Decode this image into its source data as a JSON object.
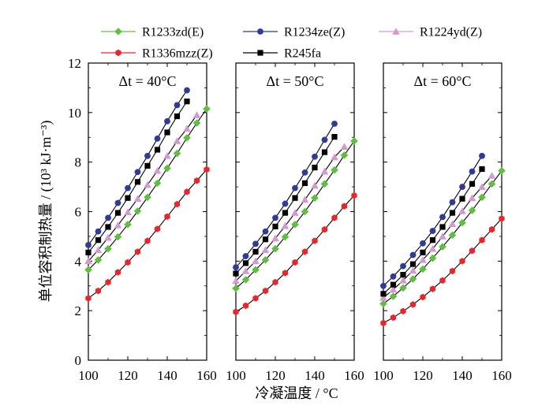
{
  "chart_data": {
    "type": "line",
    "xlabel": "冷凝温度 / °C",
    "ylabel": "单位容积制热量 / (10³ kJ·m⁻³)",
    "ylim": [
      0,
      12
    ],
    "xlim": [
      100,
      160
    ],
    "x_ticks": [
      "100",
      "120",
      "140",
      "160"
    ],
    "y_ticks": [
      "0",
      "2",
      "4",
      "6",
      "8",
      "10",
      "12"
    ],
    "x": [
      100,
      105,
      110,
      115,
      120,
      125,
      130,
      135,
      140,
      145,
      150,
      155,
      160
    ],
    "series_styles": [
      {
        "name": "R1233zd(E)",
        "color": "#5fbf3f",
        "marker": "diamond"
      },
      {
        "name": "R1234ze(Z)",
        "color": "#2e3b9a",
        "marker": "circle"
      },
      {
        "name": "R1224yd(Z)",
        "color": "#d49ad0",
        "marker": "triangle"
      },
      {
        "name": "R1336mzz(Z)",
        "color": "#e8262b",
        "marker": "hexagon"
      },
      {
        "name": "R245fa",
        "color": "#000000",
        "marker": "square"
      }
    ],
    "legend": {
      "position": "top",
      "rows": [
        [
          "R1233zd(E)",
          "R1234ze(Z)",
          "R1224yd(Z)"
        ],
        [
          "R1336mzz(Z)",
          "R245fa"
        ]
      ]
    },
    "panels": [
      {
        "label": "Δt = 40°C",
        "series": [
          {
            "name": "R1233zd(E)",
            "values": [
              3.65,
              4.05,
              4.5,
              4.98,
              5.48,
              6.02,
              6.58,
              7.15,
              7.75,
              8.35,
              8.98,
              9.58,
              10.15
            ]
          },
          {
            "name": "R1234ze(Z)",
            "values": [
              4.65,
              5.2,
              5.75,
              6.35,
              6.95,
              7.6,
              8.25,
              8.95,
              9.65,
              10.3,
              10.9
            ]
          },
          {
            "name": "R1224yd(Z)",
            "values": [
              4.0,
              4.45,
              4.95,
              5.45,
              5.98,
              6.52,
              7.08,
              7.65,
              8.25,
              8.85,
              9.35,
              9.9
            ]
          },
          {
            "name": "R1336mzz(Z)",
            "values": [
              2.5,
              2.8,
              3.15,
              3.55,
              3.95,
              4.38,
              4.82,
              5.3,
              5.8,
              6.3,
              6.8,
              7.25,
              7.7
            ]
          },
          {
            "name": "R245fa",
            "values": [
              4.35,
              4.85,
              5.38,
              5.95,
              6.55,
              7.2,
              7.85,
              8.5,
              9.2,
              9.85,
              10.45
            ]
          }
        ]
      },
      {
        "label": "Δt = 50°C",
        "series": [
          {
            "name": "R1233zd(E)",
            "values": [
              2.9,
              3.25,
              3.65,
              4.05,
              4.5,
              4.98,
              5.48,
              6.0,
              6.55,
              7.12,
              7.68,
              8.28,
              8.85
            ]
          },
          {
            "name": "R1234ze(Z)",
            "values": [
              3.75,
              4.2,
              4.7,
              5.2,
              5.75,
              6.32,
              6.95,
              7.58,
              8.22,
              8.9,
              9.55
            ]
          },
          {
            "name": "R1224yd(Z)",
            "values": [
              3.2,
              3.6,
              4.0,
              4.45,
              4.92,
              5.42,
              5.95,
              6.48,
              7.05,
              7.62,
              8.2,
              8.62
            ]
          },
          {
            "name": "R1336mzz(Z)",
            "values": [
              1.95,
              2.2,
              2.5,
              2.8,
              3.15,
              3.52,
              3.95,
              4.38,
              4.82,
              5.28,
              5.75,
              6.22,
              6.65
            ]
          },
          {
            "name": "R245fa",
            "values": [
              3.5,
              3.92,
              4.38,
              4.88,
              5.4,
              5.95,
              6.55,
              7.15,
              7.78,
              8.4,
              9.02
            ]
          }
        ]
      },
      {
        "label": "Δt = 60°C",
        "series": [
          {
            "name": "R1233zd(E)",
            "values": [
              2.28,
              2.58,
              2.92,
              3.28,
              3.68,
              4.12,
              4.58,
              5.05,
              5.55,
              6.05,
              6.58,
              7.12,
              7.65
            ]
          },
          {
            "name": "R1234ze(Z)",
            "values": [
              3.0,
              3.38,
              3.8,
              4.25,
              4.72,
              5.22,
              5.78,
              6.38,
              7.0,
              7.62,
              8.25
            ]
          },
          {
            "name": "R1224yd(Z)",
            "values": [
              2.52,
              2.85,
              3.22,
              3.62,
              4.05,
              4.5,
              5.0,
              5.5,
              6.02,
              6.55,
              7.0,
              7.45
            ]
          },
          {
            "name": "R1336mzz(Z)",
            "values": [
              1.5,
              1.72,
              1.98,
              2.25,
              2.55,
              2.88,
              3.22,
              3.6,
              4.0,
              4.42,
              4.85,
              5.28,
              5.72
            ]
          },
          {
            "name": "R245fa",
            "values": [
              2.68,
              3.05,
              3.45,
              3.88,
              4.35,
              4.85,
              5.38,
              5.95,
              6.52,
              7.12,
              7.72
            ]
          }
        ]
      }
    ]
  }
}
